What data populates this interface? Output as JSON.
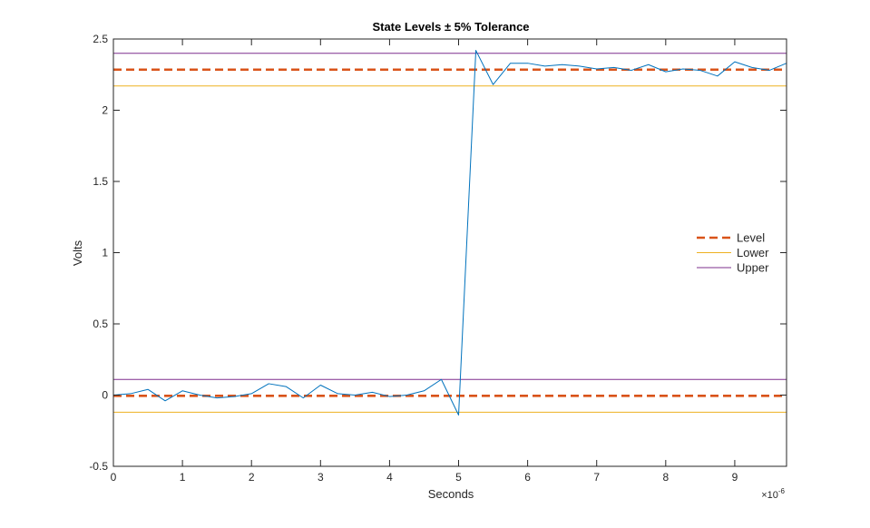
{
  "chart_data": {
    "type": "line",
    "title": "State  Levels   ±  5%   Tolerance",
    "xlabel": "Seconds",
    "ylabel": "Volts",
    "x_exponent_label": "×10",
    "x_exponent_power": "-6",
    "x_scale": 1e-06,
    "xlim": [
      0,
      9.75
    ],
    "ylim": [
      -0.5,
      2.5
    ],
    "x_ticks": [
      0,
      1,
      2,
      3,
      4,
      5,
      6,
      7,
      8,
      9
    ],
    "x_tick_labels": [
      "0",
      "1",
      "2",
      "3",
      "4",
      "5",
      "6",
      "7",
      "8",
      "9"
    ],
    "y_ticks": [
      -0.5,
      0,
      0.5,
      1,
      1.5,
      2,
      2.5
    ],
    "y_tick_labels": [
      "-0.5",
      "0",
      "0.5",
      "1",
      "1.5",
      "2",
      "2.5"
    ],
    "grid": false,
    "legend_position": "right",
    "signal": {
      "color": "#0072BD",
      "x": [
        0,
        0.25,
        0.5,
        0.75,
        1,
        1.25,
        1.5,
        1.75,
        2,
        2.25,
        2.5,
        2.75,
        3,
        3.25,
        3.5,
        3.75,
        4,
        4.25,
        4.5,
        4.75,
        5,
        5.25,
        5.5,
        5.75,
        6,
        6.25,
        6.5,
        6.75,
        7,
        7.25,
        7.5,
        7.75,
        8,
        8.25,
        8.5,
        8.75,
        9,
        9.25,
        9.5,
        9.75
      ],
      "y": [
        0.0,
        0.01,
        0.04,
        -0.04,
        0.03,
        0.0,
        -0.02,
        -0.01,
        0.01,
        0.08,
        0.06,
        -0.02,
        0.07,
        0.01,
        0.0,
        0.02,
        -0.01,
        0.0,
        0.03,
        0.11,
        -0.14,
        2.42,
        2.18,
        2.33,
        2.33,
        2.31,
        2.32,
        2.31,
        2.29,
        2.3,
        2.28,
        2.32,
        2.27,
        2.29,
        2.28,
        2.24,
        2.34,
        2.3,
        2.28,
        2.33
      ]
    },
    "series": [
      {
        "name": "Level",
        "color": "#D95319",
        "style": "dashed",
        "values": [
          -0.005,
          2.285
        ]
      },
      {
        "name": "Lower",
        "color": "#EDB120",
        "style": "solid",
        "values": [
          -0.12,
          2.17
        ]
      },
      {
        "name": "Upper",
        "color": "#7E2F8E",
        "style": "solid",
        "values": [
          0.11,
          2.4
        ]
      }
    ]
  }
}
